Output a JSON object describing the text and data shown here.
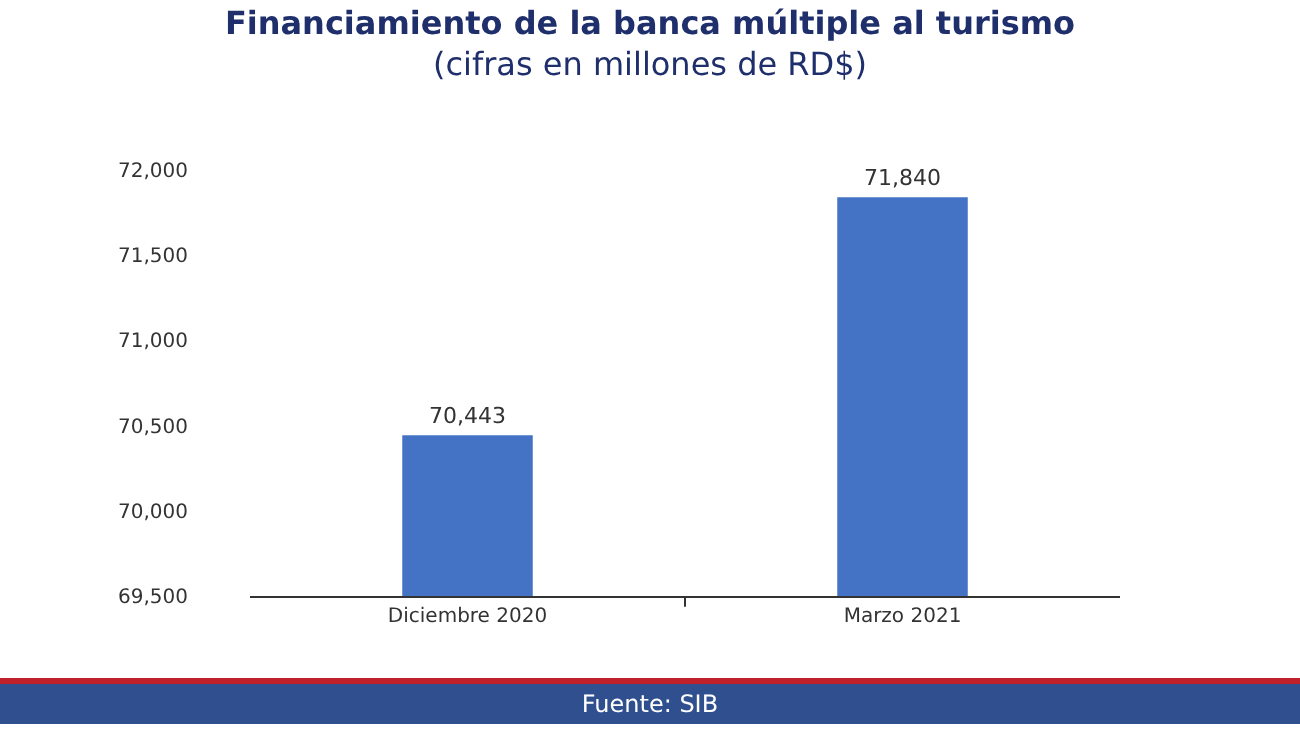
{
  "chart_data": {
    "type": "bar",
    "title": "Financiamiento de la banca múltiple al turismo",
    "subtitle": "(cifras en millones de RD$)",
    "categories": [
      "Diciembre 2020",
      "Marzo 2021"
    ],
    "values": [
      70443,
      71840
    ],
    "color": "#4472c4",
    "ylim": [
      69500,
      72000
    ],
    "yticks": [
      {
        "value": 69500,
        "label": "69,500"
      },
      {
        "value": 70000,
        "label": "70,000"
      },
      {
        "value": 70500,
        "label": "70,500"
      },
      {
        "value": 71000,
        "label": "71,000"
      },
      {
        "value": 71500,
        "label": "71,500"
      },
      {
        "value": 72000,
        "label": "72,000"
      }
    ],
    "value_labels": [
      "70,443",
      "71,840"
    ],
    "grid": false,
    "annotations": [
      "Fuente: SIB"
    ]
  }
}
